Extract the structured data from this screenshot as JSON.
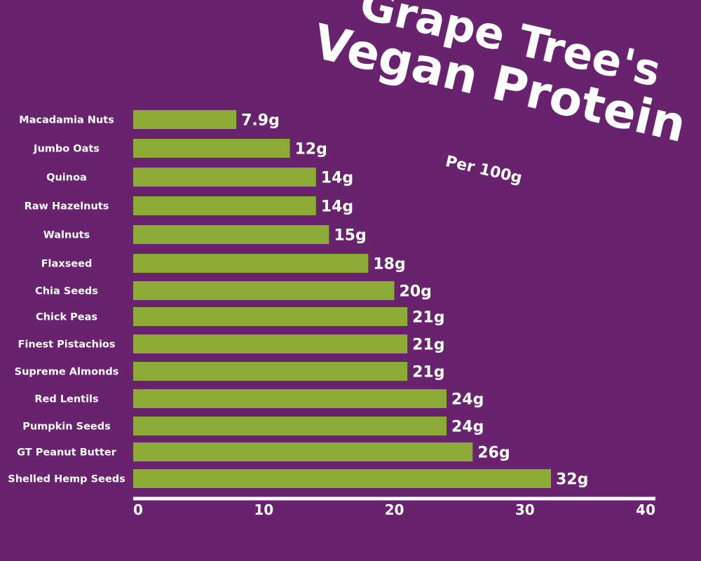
{
  "title_line1": "Grape Tree's",
  "title_line2": "Vegan Protein",
  "subtitle": "Per 100g",
  "colors": {
    "background": "#69236e",
    "bar": "#8cab36",
    "text": "#ffffff"
  },
  "chart_data": {
    "type": "bar",
    "orientation": "horizontal",
    "title": "Grape Tree's Vegan Protein",
    "subtitle": "Per 100g",
    "categories": [
      "Macadamia Nuts",
      "Jumbo Oats",
      "Quinoa",
      "Raw Hazelnuts",
      "Walnuts",
      "Flaxseed",
      "Chia Seeds",
      "Chick Peas",
      "Finest Pistachios",
      "Supreme Almonds",
      "Red Lentils",
      "Pumpkin Seeds",
      "GT Peanut Butter",
      "Shelled Hemp Seeds"
    ],
    "values": [
      7.9,
      12,
      14,
      14,
      15,
      18,
      20,
      21,
      21,
      21,
      24,
      24,
      26,
      32
    ],
    "data_labels": [
      "7.9g",
      "12g",
      "14g",
      "14g",
      "15g",
      "18g",
      "20g",
      "21g",
      "21g",
      "21g",
      "24g",
      "24g",
      "26g",
      "32g"
    ],
    "xlim": [
      0,
      40
    ],
    "xticks": [
      "0",
      "10",
      "20",
      "30",
      "40"
    ],
    "xlabel": "",
    "ylabel": "",
    "grid": false,
    "legend": "none"
  }
}
